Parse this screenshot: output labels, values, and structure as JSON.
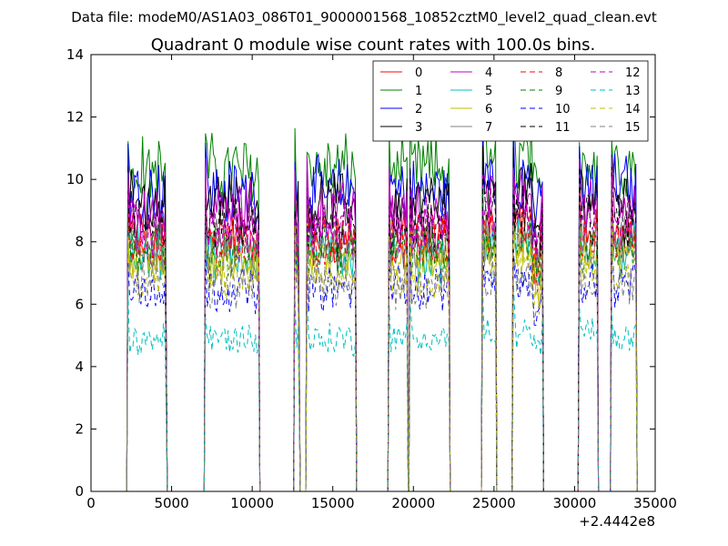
{
  "chart_data": {
    "type": "line",
    "suptitle": "Data file: modeM0/AS1A03_086T01_9000001568_10852cztM0_level2_quad_clean.evt",
    "title": "Quadrant 0 module wise count rates with 100.0s bins.",
    "xlabel": "",
    "ylabel": "",
    "x_offset_label": "+2.4442e8",
    "xlim": [
      0,
      35000
    ],
    "ylim": [
      0,
      14
    ],
    "xticks": [
      0,
      5000,
      10000,
      15000,
      20000,
      25000,
      30000,
      35000
    ],
    "xtick_labels": [
      "0",
      "5000",
      "10000",
      "15000",
      "20000",
      "25000",
      "30000",
      "35000"
    ],
    "yticks": [
      0,
      2,
      4,
      6,
      8,
      10,
      12,
      14
    ],
    "ytick_labels": [
      "0",
      "2",
      "4",
      "6",
      "8",
      "10",
      "12",
      "14"
    ],
    "grid": false,
    "legend_position": "top-right",
    "bin_width": 100,
    "segments": [
      [
        2300,
        4650
      ],
      [
        7100,
        10400
      ],
      [
        12650,
        12900
      ],
      [
        13400,
        16400
      ],
      [
        18500,
        19600
      ],
      [
        19800,
        22200
      ],
      [
        24300,
        25100
      ],
      [
        26200,
        28000
      ],
      [
        30300,
        31400
      ],
      [
        32300,
        33800
      ]
    ],
    "series": [
      {
        "name": "0",
        "color": "#ff0000",
        "style": "solid",
        "mean": 8.2
      },
      {
        "name": "1",
        "color": "#008000",
        "style": "solid",
        "mean": 10.3
      },
      {
        "name": "2",
        "color": "#0000ff",
        "style": "solid",
        "mean": 9.6
      },
      {
        "name": "3",
        "color": "#000000",
        "style": "solid",
        "mean": 9.2
      },
      {
        "name": "4",
        "color": "#bf00bf",
        "style": "solid",
        "mean": 8.9
      },
      {
        "name": "5",
        "color": "#00bfbf",
        "style": "solid",
        "mean": 7.6
      },
      {
        "name": "6",
        "color": "#bfbf00",
        "style": "solid",
        "mean": 7.3
      },
      {
        "name": "7",
        "color": "#808080",
        "style": "solid",
        "mean": 7.8
      },
      {
        "name": "8",
        "color": "#ff0000",
        "style": "dashed",
        "mean": 7.9
      },
      {
        "name": "9",
        "color": "#008000",
        "style": "dashed",
        "mean": 7.7
      },
      {
        "name": "10",
        "color": "#0000ff",
        "style": "dashed",
        "mean": 6.5
      },
      {
        "name": "11",
        "color": "#000000",
        "style": "dashed",
        "mean": 8.6
      },
      {
        "name": "12",
        "color": "#bf00bf",
        "style": "dashed",
        "mean": 8.4
      },
      {
        "name": "13",
        "color": "#00bfbf",
        "style": "dashed",
        "mean": 4.9
      },
      {
        "name": "14",
        "color": "#bfbf00",
        "style": "dashed",
        "mean": 7.0
      },
      {
        "name": "15",
        "color": "#808080",
        "style": "dashed",
        "mean": 6.6
      }
    ]
  }
}
